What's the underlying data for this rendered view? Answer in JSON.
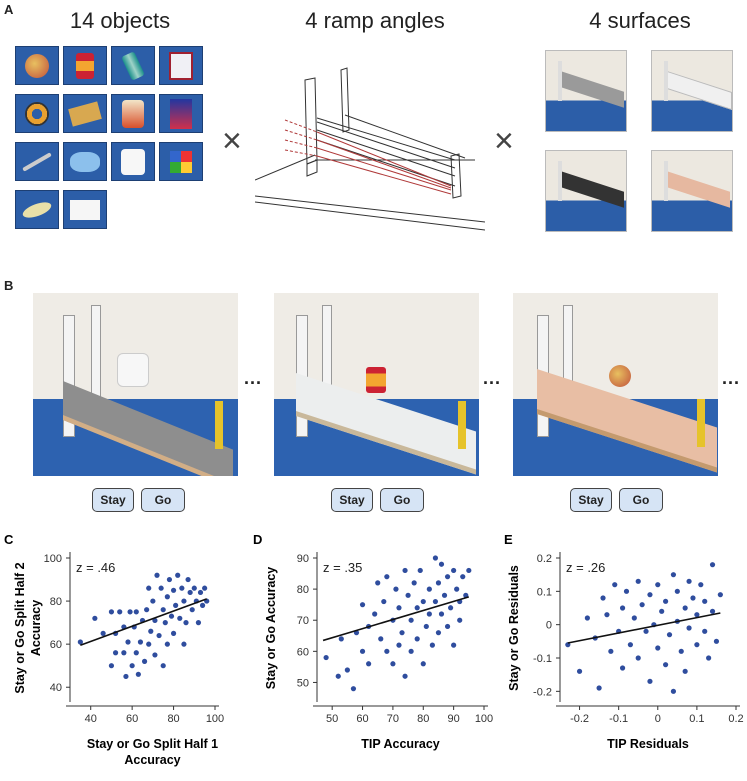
{
  "panel_a": {
    "letter": "A",
    "objects_header": "14 objects",
    "angles_header": "4 ramp angles",
    "surfaces_header": "4 surfaces",
    "times_symbol": "×",
    "objects": [
      "apple",
      "can",
      "soda-can",
      "playing-cards",
      "tape-roll",
      "box",
      "chips-bag",
      "cereal-box",
      "toothbrush",
      "gloves",
      "toilet-paper",
      "rubiks-cube",
      "corn",
      "sponge"
    ],
    "surfaces": [
      "grey",
      "white",
      "black",
      "wood"
    ]
  },
  "panel_b": {
    "letter": "B",
    "ellipsis": "...",
    "trials": [
      {
        "object": "toilet-paper",
        "surface": "grey"
      },
      {
        "object": "can",
        "surface": "white"
      },
      {
        "object": "apple",
        "surface": "wood"
      }
    ],
    "stay_label": "Stay",
    "go_label": "Go"
  },
  "chart_data": [
    {
      "panel": "C",
      "type": "scatter",
      "annotation": "z = .46",
      "ylabel": "Stay or Go Split Half 2 Accuracy",
      "xlabel": "Stay or Go Split Half 1 Accuracy",
      "xlim": [
        30,
        100
      ],
      "ylim": [
        35,
        100
      ],
      "xticks": [
        40,
        60,
        80,
        100
      ],
      "yticks": [
        40,
        60,
        80,
        100
      ],
      "points": [
        [
          35,
          61
        ],
        [
          42,
          72
        ],
        [
          46,
          65
        ],
        [
          50,
          75
        ],
        [
          50,
          50
        ],
        [
          52,
          56
        ],
        [
          52,
          65
        ],
        [
          54,
          75
        ],
        [
          56,
          56
        ],
        [
          56,
          68
        ],
        [
          57,
          45
        ],
        [
          58,
          61
        ],
        [
          59,
          75
        ],
        [
          60,
          50
        ],
        [
          61,
          68
        ],
        [
          62,
          56
        ],
        [
          62,
          75
        ],
        [
          63,
          46
        ],
        [
          64,
          61
        ],
        [
          65,
          71
        ],
        [
          66,
          52
        ],
        [
          67,
          76
        ],
        [
          68,
          60
        ],
        [
          68,
          86
        ],
        [
          69,
          66
        ],
        [
          70,
          80
        ],
        [
          71,
          71
        ],
        [
          71,
          55
        ],
        [
          72,
          92
        ],
        [
          73,
          64
        ],
        [
          74,
          86
        ],
        [
          75,
          76
        ],
        [
          75,
          50
        ],
        [
          76,
          70
        ],
        [
          77,
          82
        ],
        [
          77,
          60
        ],
        [
          78,
          90
        ],
        [
          79,
          73
        ],
        [
          80,
          85
        ],
        [
          80,
          65
        ],
        [
          81,
          78
        ],
        [
          82,
          92
        ],
        [
          83,
          72
        ],
        [
          84,
          86
        ],
        [
          85,
          80
        ],
        [
          85,
          60
        ],
        [
          86,
          70
        ],
        [
          87,
          90
        ],
        [
          88,
          84
        ],
        [
          89,
          76
        ],
        [
          90,
          86
        ],
        [
          91,
          80
        ],
        [
          92,
          70
        ],
        [
          93,
          84
        ],
        [
          94,
          78
        ],
        [
          95,
          86
        ],
        [
          96,
          80
        ]
      ],
      "fit": [
        [
          35,
          59.5
        ],
        [
          96,
          81
        ]
      ]
    },
    {
      "panel": "D",
      "type": "scatter",
      "annotation": "z = .35",
      "ylabel": "Stay or Go Accuracy",
      "xlabel": "TIP Accuracy",
      "xlim": [
        45,
        100
      ],
      "ylim": [
        45,
        90
      ],
      "xticks": [
        50,
        60,
        70,
        80,
        90,
        100
      ],
      "yticks": [
        50,
        60,
        70,
        80,
        90
      ],
      "points": [
        [
          48,
          58
        ],
        [
          52,
          52
        ],
        [
          53,
          64
        ],
        [
          55,
          54
        ],
        [
          57,
          48
        ],
        [
          58,
          66
        ],
        [
          60,
          75
        ],
        [
          60,
          60
        ],
        [
          62,
          68
        ],
        [
          62,
          56
        ],
        [
          64,
          72
        ],
        [
          65,
          82
        ],
        [
          66,
          64
        ],
        [
          67,
          76
        ],
        [
          68,
          60
        ],
        [
          68,
          84
        ],
        [
          70,
          70
        ],
        [
          70,
          56
        ],
        [
          71,
          80
        ],
        [
          72,
          74
        ],
        [
          72,
          62
        ],
        [
          73,
          66
        ],
        [
          74,
          86
        ],
        [
          74,
          52
        ],
        [
          75,
          78
        ],
        [
          76,
          70
        ],
        [
          76,
          60
        ],
        [
          77,
          82
        ],
        [
          78,
          74
        ],
        [
          78,
          64
        ],
        [
          79,
          86
        ],
        [
          80,
          76
        ],
        [
          80,
          56
        ],
        [
          81,
          68
        ],
        [
          82,
          80
        ],
        [
          82,
          72
        ],
        [
          83,
          62
        ],
        [
          84,
          90
        ],
        [
          84,
          76
        ],
        [
          85,
          82
        ],
        [
          85,
          66
        ],
        [
          86,
          72
        ],
        [
          86,
          88
        ],
        [
          87,
          78
        ],
        [
          88,
          84
        ],
        [
          88,
          68
        ],
        [
          89,
          74
        ],
        [
          90,
          86
        ],
        [
          90,
          62
        ],
        [
          91,
          80
        ],
        [
          92,
          76
        ],
        [
          92,
          70
        ],
        [
          93,
          84
        ],
        [
          94,
          78
        ],
        [
          95,
          86
        ]
      ],
      "fit": [
        [
          47,
          63.5
        ],
        [
          95,
          77.5
        ]
      ]
    },
    {
      "panel": "E",
      "type": "scatter",
      "annotation": "z = .26",
      "ylabel": "Stay or Go Residuals",
      "xlabel": "TIP Residuals",
      "xlim": [
        -0.25,
        0.2
      ],
      "ylim": [
        -0.22,
        0.2
      ],
      "xticks": [
        -0.2,
        -0.1,
        0,
        0.1,
        0.2
      ],
      "yticks": [
        -0.2,
        -0.1,
        0,
        0.1,
        0.2
      ],
      "xticklabels": [
        "-0.2",
        "-0.1",
        "0",
        "0.1",
        "0.2"
      ],
      "yticklabels": [
        "-0.2",
        "-0.1",
        "0",
        "0.1",
        "0.2"
      ],
      "points": [
        [
          -0.23,
          -0.06
        ],
        [
          -0.2,
          -0.14
        ],
        [
          -0.18,
          0.02
        ],
        [
          -0.16,
          -0.04
        ],
        [
          -0.15,
          -0.19
        ],
        [
          -0.14,
          0.08
        ],
        [
          -0.13,
          0.03
        ],
        [
          -0.12,
          -0.08
        ],
        [
          -0.11,
          0.12
        ],
        [
          -0.1,
          -0.02
        ],
        [
          -0.09,
          0.05
        ],
        [
          -0.09,
          -0.13
        ],
        [
          -0.08,
          0.1
        ],
        [
          -0.07,
          -0.06
        ],
        [
          -0.06,
          0.02
        ],
        [
          -0.05,
          0.13
        ],
        [
          -0.05,
          -0.1
        ],
        [
          -0.04,
          0.06
        ],
        [
          -0.03,
          -0.02
        ],
        [
          -0.02,
          -0.17
        ],
        [
          -0.02,
          0.09
        ],
        [
          -0.01,
          0.0
        ],
        [
          0.0,
          -0.07
        ],
        [
          0.0,
          0.12
        ],
        [
          0.01,
          0.04
        ],
        [
          0.02,
          -0.12
        ],
        [
          0.02,
          0.07
        ],
        [
          0.03,
          -0.03
        ],
        [
          0.04,
          0.15
        ],
        [
          0.04,
          -0.2
        ],
        [
          0.05,
          0.01
        ],
        [
          0.05,
          0.1
        ],
        [
          0.06,
          -0.08
        ],
        [
          0.07,
          0.05
        ],
        [
          0.07,
          -0.14
        ],
        [
          0.08,
          0.13
        ],
        [
          0.08,
          -0.01
        ],
        [
          0.09,
          0.08
        ],
        [
          0.1,
          -0.06
        ],
        [
          0.1,
          0.03
        ],
        [
          0.11,
          0.12
        ],
        [
          0.12,
          -0.02
        ],
        [
          0.12,
          0.07
        ],
        [
          0.13,
          -0.1
        ],
        [
          0.14,
          0.18
        ],
        [
          0.14,
          0.04
        ],
        [
          0.15,
          -0.05
        ],
        [
          0.16,
          0.09
        ]
      ],
      "fit": [
        [
          -0.23,
          -0.055
        ],
        [
          0.16,
          0.035
        ]
      ]
    }
  ],
  "colors": {
    "point": "#2f4d9e",
    "mat": "#2d62b0",
    "button_bg": "#d6e4f5",
    "ramp_red": "#b03a3a"
  }
}
